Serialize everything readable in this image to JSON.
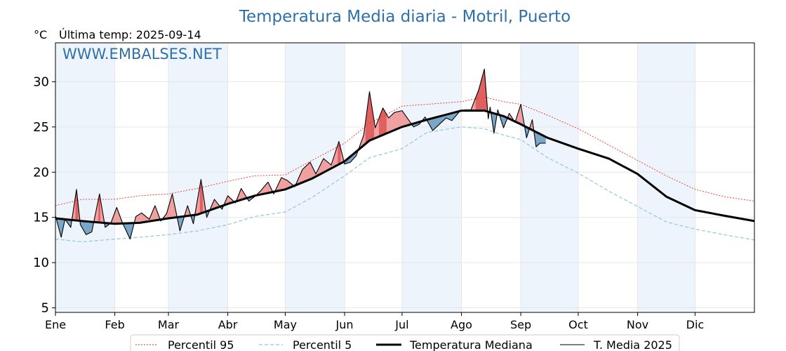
{
  "title": "Temperatura Media diaria - Motril, Puerto",
  "unit_label": "°C",
  "last_temp": "Última temp: 2025-09-14",
  "watermark": "WWW.EMBALSES.NET",
  "colors": {
    "title": "#2f70a8",
    "p95": "#e8322c",
    "p5": "#8fc8dd",
    "median": "#000000",
    "actual": "#000000",
    "above_fill": "#f0a0a0",
    "above_strong": "#e06060",
    "below_fill": "#7aa6c8",
    "band": "#eef4fb"
  },
  "chart_data": {
    "type": "line",
    "title": "Temperatura Media diaria - Motril, Puerto",
    "ylabel": "°C",
    "ylim": [
      4.5,
      34.3
    ],
    "yticks": [
      5,
      10,
      15,
      20,
      25,
      30
    ],
    "xlim": [
      1,
      366
    ],
    "month_labels": [
      "Ene",
      "Feb",
      "Mar",
      "Abr",
      "May",
      "Jun",
      "Jul",
      "Ago",
      "Sep",
      "Oct",
      "Nov",
      "Dic"
    ],
    "month_starts": [
      1,
      32,
      60,
      91,
      121,
      152,
      182,
      213,
      244,
      274,
      305,
      335
    ],
    "grid": true,
    "legend_position": "bottom",
    "series": [
      {
        "name": "Percentil 95",
        "style": "dotted-red",
        "x": [
          1,
          15,
          32,
          45,
          60,
          75,
          91,
          105,
          121,
          135,
          152,
          165,
          182,
          195,
          213,
          225,
          235,
          244,
          258,
          274,
          290,
          305,
          320,
          335,
          350,
          366
        ],
        "values": [
          16.3,
          17.0,
          17.0,
          17.4,
          17.6,
          18.2,
          19.0,
          19.6,
          19.7,
          21.3,
          23.2,
          25.4,
          27.3,
          27.5,
          27.8,
          28.3,
          27.8,
          27.5,
          26.3,
          24.8,
          23.0,
          21.3,
          19.6,
          18.1,
          17.3,
          16.8
        ]
      },
      {
        "name": "Percentil 5",
        "style": "dashed-lightblue",
        "x": [
          1,
          15,
          32,
          45,
          60,
          75,
          91,
          105,
          121,
          135,
          152,
          165,
          182,
          195,
          213,
          225,
          235,
          244,
          258,
          274,
          290,
          305,
          320,
          335,
          350,
          366
        ],
        "values": [
          12.6,
          12.3,
          12.6,
          12.8,
          13.1,
          13.5,
          14.2,
          15.1,
          15.6,
          17.2,
          19.6,
          21.6,
          22.6,
          24.4,
          25.0,
          24.8,
          24.1,
          23.6,
          21.6,
          19.9,
          17.9,
          16.2,
          14.5,
          13.7,
          13.1,
          12.5
        ]
      },
      {
        "name": "Temperatura Mediana",
        "style": "thick-black",
        "x": [
          1,
          15,
          32,
          45,
          60,
          75,
          91,
          105,
          121,
          135,
          152,
          165,
          182,
          195,
          213,
          225,
          235,
          244,
          258,
          274,
          290,
          305,
          320,
          335,
          350,
          366
        ],
        "values": [
          14.9,
          14.6,
          14.3,
          14.4,
          14.9,
          15.3,
          16.5,
          17.4,
          18.1,
          19.3,
          21.2,
          23.5,
          25.0,
          25.8,
          26.8,
          26.8,
          26.2,
          25.3,
          23.8,
          22.6,
          21.5,
          19.8,
          17.3,
          15.8,
          15.2,
          14.6
        ]
      },
      {
        "name": "T. Media 2025",
        "style": "thin-black",
        "x": [
          1,
          4,
          6,
          9,
          12,
          14,
          17,
          20,
          24,
          27,
          30,
          33,
          36,
          40,
          43,
          46,
          50,
          53,
          56,
          59,
          62,
          66,
          70,
          73,
          77,
          80,
          84,
          88,
          91,
          95,
          98,
          102,
          105,
          108,
          112,
          115,
          119,
          122,
          126,
          130,
          134,
          137,
          141,
          145,
          149,
          152,
          155,
          158,
          162,
          165,
          168,
          172,
          175,
          178,
          182,
          185,
          188,
          191,
          194,
          198,
          202,
          205,
          208,
          212,
          215,
          218,
          222,
          225,
          227,
          228,
          230,
          232,
          235,
          238,
          241,
          244,
          247,
          250,
          252,
          254,
          257
        ],
        "values": [
          15.2,
          12.8,
          14.8,
          13.9,
          18.1,
          14.2,
          13.1,
          13.4,
          17.6,
          13.9,
          14.4,
          16.1,
          14.4,
          12.6,
          15.1,
          15.5,
          14.8,
          16.3,
          14.6,
          15.4,
          17.6,
          13.5,
          16.3,
          14.3,
          19.2,
          15.0,
          17.0,
          15.9,
          17.4,
          16.6,
          18.2,
          16.8,
          17.3,
          17.9,
          18.9,
          17.6,
          19.4,
          19.1,
          18.4,
          20.3,
          21.1,
          19.8,
          21.5,
          20.8,
          23.4,
          20.9,
          21.1,
          21.8,
          24.1,
          28.9,
          24.9,
          27.1,
          26.0,
          26.6,
          26.8,
          25.9,
          25.0,
          25.3,
          26.1,
          24.6,
          25.4,
          26.0,
          25.7,
          26.7,
          26.9,
          26.9,
          29.1,
          31.4,
          25.9,
          27.2,
          24.3,
          26.9,
          24.9,
          26.5,
          25.5,
          27.5,
          23.8,
          25.8,
          22.8,
          23.2,
          23.2
        ]
      }
    ]
  },
  "legend": {
    "p95": "Percentil 95",
    "p5": "Percentil 5",
    "median": "Temperatura Mediana",
    "actual": "T. Media 2025"
  }
}
